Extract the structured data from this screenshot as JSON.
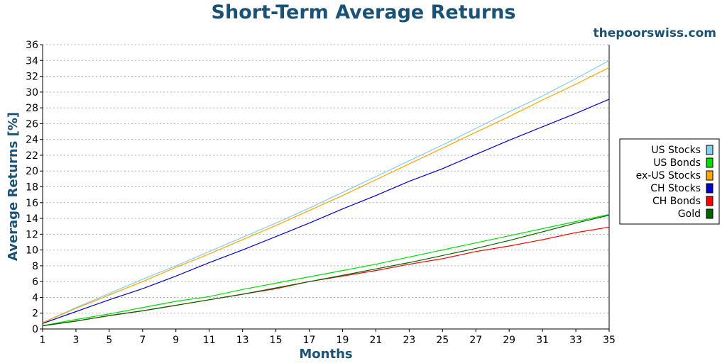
{
  "chart_data": {
    "type": "line",
    "title": "Short-Term Average Returns",
    "site": "thepoorswiss.com",
    "xlabel": "Months",
    "ylabel": "Average Returns [%]",
    "xlim": [
      1,
      35
    ],
    "ylim": [
      0,
      36
    ],
    "x_ticks": [
      1,
      3,
      5,
      7,
      9,
      11,
      13,
      15,
      17,
      19,
      21,
      23,
      25,
      27,
      29,
      31,
      33,
      35
    ],
    "y_ticks": [
      0,
      2,
      4,
      6,
      8,
      10,
      12,
      14,
      16,
      18,
      20,
      22,
      24,
      26,
      28,
      30,
      32,
      34,
      36
    ],
    "grid": "horizontal-dotted",
    "legend_position": "right",
    "x": [
      1,
      3,
      5,
      7,
      9,
      11,
      13,
      15,
      17,
      19,
      21,
      23,
      25,
      27,
      29,
      31,
      33,
      35
    ],
    "series": [
      {
        "name": "US Stocks",
        "color": "#87ceeb",
        "values": [
          0.8,
          2.7,
          4.5,
          6.3,
          8.0,
          9.8,
          11.6,
          13.4,
          15.3,
          17.3,
          19.3,
          21.3,
          23.3,
          25.4,
          27.5,
          29.5,
          31.7,
          34.0
        ]
      },
      {
        "name": "US Bonds",
        "color": "#00dd00",
        "values": [
          0.4,
          1.2,
          1.9,
          2.7,
          3.5,
          4.1,
          5.0,
          5.8,
          6.6,
          7.4,
          8.2,
          9.1,
          10.0,
          10.9,
          11.8,
          12.7,
          13.6,
          14.5
        ]
      },
      {
        "name": "ex-US Stocks",
        "color": "#ffa500",
        "values": [
          0.8,
          2.6,
          4.3,
          6.0,
          7.8,
          9.5,
          11.3,
          13.1,
          15.0,
          16.9,
          18.9,
          20.9,
          22.9,
          24.9,
          26.9,
          29.0,
          31.0,
          33.1
        ]
      },
      {
        "name": "CH Stocks",
        "color": "#0000cc",
        "values": [
          0.7,
          2.2,
          3.7,
          5.1,
          6.7,
          8.4,
          10.0,
          11.7,
          13.4,
          15.2,
          16.9,
          18.7,
          20.3,
          22.1,
          23.9,
          25.6,
          27.3,
          29.1
        ]
      },
      {
        "name": "CH Bonds",
        "color": "#ff0000",
        "values": [
          0.4,
          1.0,
          1.7,
          2.3,
          3.0,
          3.7,
          4.4,
          5.1,
          6.0,
          6.7,
          7.4,
          8.2,
          8.9,
          9.8,
          10.5,
          11.3,
          12.2,
          12.9
        ]
      },
      {
        "name": "Gold",
        "color": "#006400",
        "values": [
          0.4,
          1.0,
          1.7,
          2.3,
          3.0,
          3.7,
          4.4,
          5.2,
          6.0,
          6.8,
          7.6,
          8.4,
          9.3,
          10.2,
          11.2,
          12.3,
          13.4,
          14.4
        ]
      }
    ]
  }
}
